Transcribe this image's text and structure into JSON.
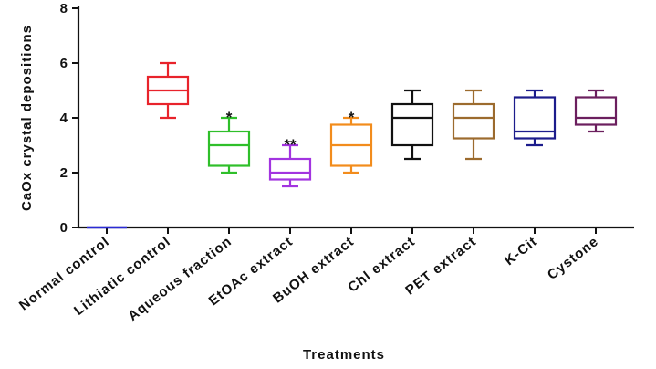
{
  "chart_data": {
    "type": "box",
    "ylabel": "CaOx crystal depositions",
    "xlabel": "Treatments",
    "ylim": [
      0,
      8
    ],
    "yticks": [
      0,
      2,
      4,
      6,
      8
    ],
    "grid": false,
    "categories": [
      "Normal control",
      "Lithiatic control",
      "Aqueous fraction",
      "EtOAc extract",
      "BuOH extract",
      "Chl extract",
      "PET extract",
      "K-Cit",
      "Cystone"
    ],
    "boxes": [
      {
        "min": 0,
        "q1": 0,
        "median": 0,
        "q3": 0,
        "max": 0,
        "color": "#2b2bd6",
        "significance": ""
      },
      {
        "min": 4,
        "q1": 4.5,
        "median": 5,
        "q3": 5.5,
        "max": 6,
        "color": "#e8232b",
        "significance": ""
      },
      {
        "min": 2,
        "q1": 2.25,
        "median": 3,
        "q3": 3.5,
        "max": 4,
        "color": "#2fbf2a",
        "significance": "*"
      },
      {
        "min": 1.5,
        "q1": 1.75,
        "median": 2,
        "q3": 2.5,
        "max": 3,
        "color": "#a234e0",
        "significance": "**"
      },
      {
        "min": 2,
        "q1": 2.25,
        "median": 3,
        "q3": 3.75,
        "max": 4,
        "color": "#f28c1c",
        "significance": "*"
      },
      {
        "min": 2.5,
        "q1": 3,
        "median": 4,
        "q3": 4.5,
        "max": 5,
        "color": "#111111",
        "significance": ""
      },
      {
        "min": 2.5,
        "q1": 3.25,
        "median": 4,
        "q3": 4.5,
        "max": 5,
        "color": "#9c6b2e",
        "significance": ""
      },
      {
        "min": 3,
        "q1": 3.25,
        "median": 3.5,
        "q3": 4.75,
        "max": 5,
        "color": "#1c1c8c",
        "significance": ""
      },
      {
        "min": 3.5,
        "q1": 3.75,
        "median": 4,
        "q3": 4.75,
        "max": 5,
        "color": "#6b1f5e",
        "significance": ""
      }
    ]
  }
}
